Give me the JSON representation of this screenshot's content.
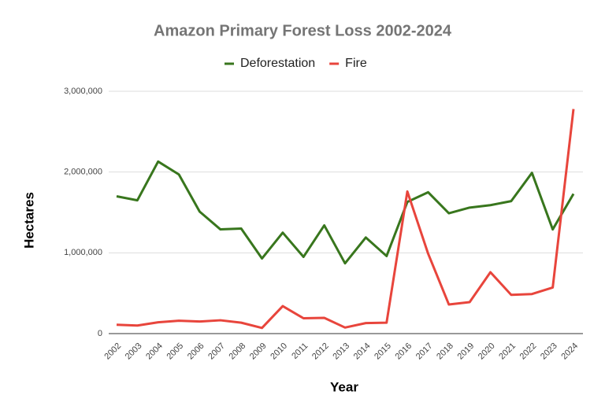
{
  "chart_data": {
    "type": "line",
    "title": "Amazon Primary Forest Loss 2002-2024",
    "x_label": "Year",
    "y_label": "Hectares",
    "categories": [
      "2002",
      "2003",
      "2004",
      "2005",
      "2006",
      "2007",
      "2008",
      "2009",
      "2010",
      "2011",
      "2012",
      "2013",
      "2014",
      "2015",
      "2016",
      "2017",
      "2018",
      "2019",
      "2020",
      "2021",
      "2022",
      "2023",
      "2024"
    ],
    "series": [
      {
        "name": "Deforestation",
        "color": "#38761d",
        "values": [
          1700000,
          1650000,
          2130000,
          1970000,
          1510000,
          1290000,
          1300000,
          930000,
          1250000,
          950000,
          1340000,
          870000,
          1190000,
          960000,
          1630000,
          1750000,
          1490000,
          1560000,
          1590000,
          1640000,
          1990000,
          1290000,
          1730000
        ]
      },
      {
        "name": "Fire",
        "color": "#e8453c",
        "values": [
          110000,
          100000,
          140000,
          160000,
          150000,
          165000,
          135000,
          70000,
          340000,
          190000,
          195000,
          75000,
          130000,
          135000,
          1760000,
          990000,
          360000,
          390000,
          760000,
          480000,
          490000,
          570000,
          2780000
        ]
      }
    ],
    "ylim": [
      0,
      3000000
    ],
    "yticks": [
      0,
      {
        "value": 1000000,
        "label": "1,000,000"
      },
      {
        "value": 2000000,
        "label": "2,000,000"
      },
      {
        "value": 3000000,
        "label": "3,000,000"
      }
    ],
    "grid": true,
    "legend": "top"
  }
}
